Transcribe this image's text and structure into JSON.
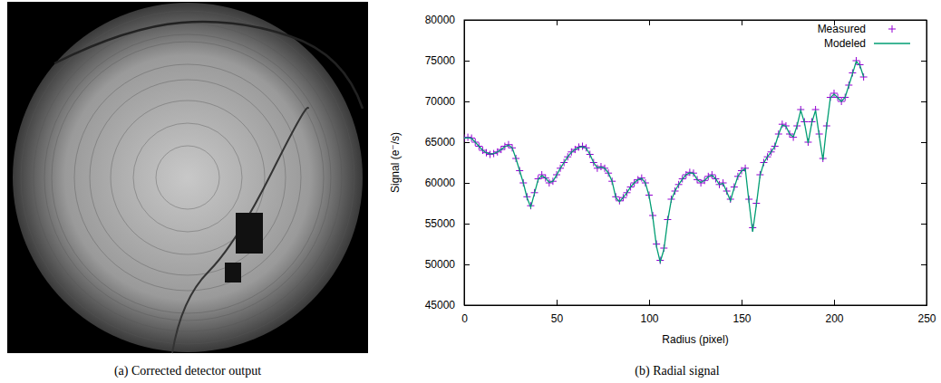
{
  "chart_data": [
    {
      "type": "image",
      "caption": "(a) Corrected detector output"
    },
    {
      "type": "scatter",
      "caption": "(b) Radial signal",
      "xlabel": "Radius (pixel)",
      "ylabel": "Signal (e⁻/s)",
      "xlim": [
        0,
        250
      ],
      "ylim": [
        45000,
        80000
      ],
      "xticks": [
        0,
        50,
        100,
        150,
        200,
        250
      ],
      "yticks": [
        45000,
        50000,
        55000,
        60000,
        65000,
        70000,
        75000,
        80000
      ],
      "grid": false,
      "legend": "top-right",
      "x": [
        0,
        2,
        4,
        6,
        8,
        10,
        12,
        14,
        16,
        18,
        20,
        22,
        24,
        26,
        28,
        30,
        32,
        34,
        36,
        38,
        40,
        42,
        44,
        46,
        48,
        50,
        52,
        54,
        56,
        58,
        60,
        62,
        64,
        66,
        68,
        70,
        72,
        74,
        76,
        78,
        80,
        82,
        84,
        86,
        88,
        90,
        92,
        94,
        96,
        98,
        100,
        102,
        104,
        106,
        108,
        110,
        112,
        114,
        116,
        118,
        120,
        122,
        124,
        126,
        128,
        130,
        132,
        134,
        136,
        138,
        140,
        142,
        144,
        146,
        148,
        150,
        152,
        154,
        156,
        158,
        160,
        162,
        164,
        166,
        168,
        170,
        172,
        174,
        176,
        178,
        180,
        182,
        184,
        186,
        188,
        190,
        192,
        194,
        196,
        198,
        200,
        202,
        204,
        206,
        208,
        210,
        212,
        214,
        216
      ],
      "series": [
        {
          "name": "Measured",
          "type": "scatter",
          "marker": "plus",
          "color": "#9400d3",
          "values": [
            65500,
            65600,
            65500,
            65000,
            64500,
            64000,
            63700,
            63500,
            63600,
            63800,
            64100,
            64500,
            64700,
            64300,
            63000,
            61500,
            60000,
            58300,
            57200,
            58800,
            60500,
            61000,
            60600,
            60000,
            60200,
            61000,
            61800,
            62500,
            63200,
            63800,
            64100,
            64400,
            64500,
            64300,
            63500,
            62500,
            61800,
            62000,
            61800,
            61200,
            60200,
            58300,
            57800,
            58200,
            58800,
            59500,
            60000,
            60400,
            60600,
            60000,
            58500,
            56000,
            52500,
            50500,
            52000,
            55500,
            58000,
            59000,
            59800,
            60500,
            61000,
            61300,
            61200,
            60400,
            60000,
            60300,
            60800,
            61000,
            60500,
            59800,
            60000,
            59000,
            58000,
            59500,
            60800,
            61500,
            61800,
            58000,
            54500,
            57500,
            61000,
            62500,
            63200,
            63800,
            64500,
            66000,
            67200,
            67000,
            66000,
            65600,
            67000,
            69000,
            67500,
            65000,
            67500,
            69000,
            66000,
            63000,
            67000,
            70500,
            71000,
            70500,
            70000,
            70500,
            72000,
            73500,
            75000,
            74500,
            73000
          ]
        },
        {
          "name": "Modeled",
          "type": "line",
          "line_style": "solid",
          "color": "#009e73",
          "values": [
            65500,
            65550,
            65450,
            65000,
            64500,
            64000,
            63700,
            63550,
            63600,
            63800,
            64100,
            64450,
            64650,
            64300,
            63000,
            61500,
            60000,
            58200,
            57000,
            58700,
            60400,
            60900,
            60600,
            60050,
            60200,
            60950,
            61800,
            62500,
            63200,
            63750,
            64100,
            64350,
            64450,
            64250,
            63500,
            62500,
            61850,
            61950,
            61800,
            61200,
            60200,
            58200,
            57700,
            58200,
            58800,
            59500,
            60000,
            60400,
            60550,
            60000,
            58400,
            55800,
            52200,
            50300,
            51800,
            55300,
            57900,
            59000,
            59800,
            60450,
            61000,
            61250,
            61150,
            60400,
            60050,
            60300,
            60750,
            60950,
            60500,
            59800,
            59950,
            58900,
            57800,
            59400,
            60800,
            61450,
            61750,
            57700,
            54000,
            57300,
            60900,
            62450,
            63200,
            63800,
            64500,
            65950,
            67100,
            66950,
            66000,
            65650,
            67000,
            68900,
            67400,
            64900,
            67400,
            68900,
            65800,
            62800,
            66900,
            70400,
            70900,
            70450,
            70000,
            70500,
            71950,
            73400,
            74900,
            74400,
            73000
          ]
        }
      ]
    }
  ]
}
